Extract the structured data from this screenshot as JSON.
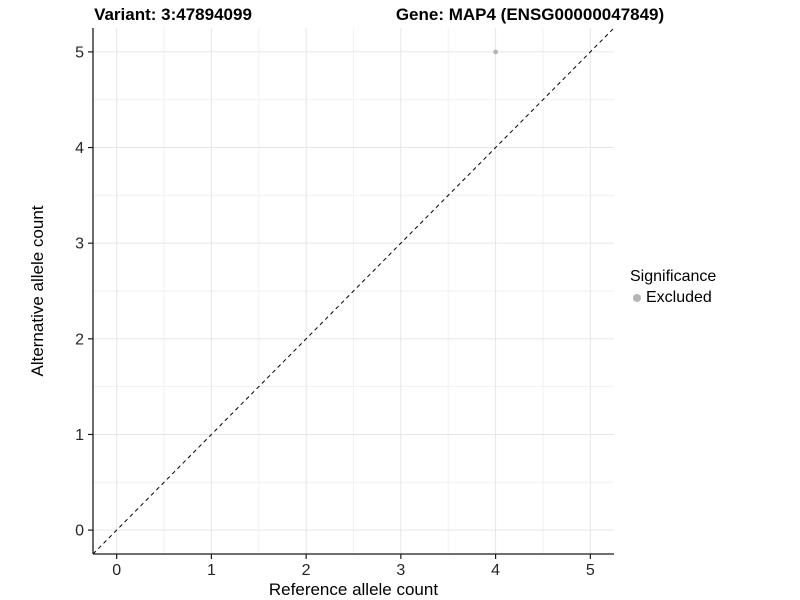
{
  "header": {
    "left_title": "Variant: 3:47894099",
    "right_title": "Gene: MAP4 (ENSG00000047849)"
  },
  "chart_data": {
    "type": "scatter",
    "title": "Variant: 3:47894099 / Gene: MAP4 (ENSG00000047849)",
    "xlabel": "Reference allele count",
    "ylabel": "Alternative allele count",
    "xlim": [
      -0.25,
      5.25
    ],
    "ylim": [
      -0.25,
      5.25
    ],
    "xticks": [
      0,
      1,
      2,
      3,
      4,
      5
    ],
    "yticks": [
      0,
      1,
      2,
      3,
      4,
      5
    ],
    "x_minor": [
      0.5,
      1.5,
      2.5,
      3.5,
      4.5
    ],
    "y_minor": [
      0.5,
      1.5,
      2.5,
      3.5,
      4.5
    ],
    "grid": "major and minor, light gray on white",
    "points": [
      {
        "x": 4,
        "y": 5,
        "series": "Excluded"
      }
    ],
    "reference_line": {
      "style": "dashed",
      "from": [
        -0.25,
        -0.25
      ],
      "to": [
        5.25,
        5.25
      ],
      "equation": "y = x"
    },
    "legend": {
      "title": "Significance",
      "position": "right",
      "entries": [
        {
          "label": "Excluded",
          "color": "#b5b5b5"
        }
      ]
    },
    "colors": {
      "point": "#b5b5b5",
      "grid_major": "#e6e6e6",
      "grid_minor": "#f1f1f1",
      "axis_line": "#1a1a1a",
      "tick_label": "#262626",
      "diagonal": "#000000",
      "background": "#ffffff"
    }
  }
}
